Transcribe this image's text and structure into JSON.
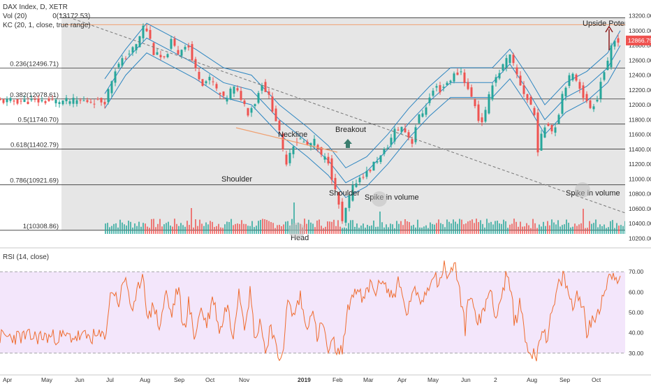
{
  "header": {
    "title": "DAX Index, D, XETR",
    "vol_label": "Vol (20)",
    "vol_value": "0(13172.53)",
    "kc_label": "KC (20, 1, close, true range)"
  },
  "rsi_panel": {
    "label": "RSI (14, close)"
  },
  "colors": {
    "background": "#ffffff",
    "fib_shade": "#e6e6e6",
    "rsi_band": "#f3e6fb",
    "bull": "#26a69a",
    "bear": "#ef5350",
    "channel": "#2e86c1",
    "neckline": "#f0a070",
    "rsi_line": "#ef6c2f",
    "price_tag": "#ef5350",
    "arrow": "#3a7d6e",
    "trendline": "#777777"
  },
  "annotations": {
    "neckline": "Neckline",
    "breakout": "Breakout",
    "shoulder_left": "Shoulder",
    "shoulder_right": "Shoulder",
    "head": "Head",
    "spike1": "Spike in volume",
    "spike2": "Spike in volume",
    "upside": "Upside Potential"
  },
  "chart_data": {
    "type": "candlestick",
    "title": "DAX Index, D, XETR",
    "x_tick_labels": [
      "Apr",
      "May",
      "Jun",
      "Jul",
      "Aug",
      "Sep",
      "Oct",
      "Nov",
      "2019",
      "Feb",
      "Mar",
      "Apr",
      "May",
      "Jun",
      "2",
      "Aug",
      "Sep",
      "Oct"
    ],
    "price_axis": {
      "ylim": [
        10100,
        13300
      ],
      "ticks": [
        10200,
        10400,
        10600,
        10800,
        11000,
        11200,
        11400,
        11600,
        11800,
        12000,
        12200,
        12400,
        12600,
        12800,
        13000,
        13200
      ],
      "tick_labels": [
        "10200.00",
        "10400.00",
        "10600.00",
        "10800.00",
        "11000.00",
        "11200.00",
        "11400.00",
        "11600.00",
        "11800.00",
        "12000.00",
        "12200.00",
        "12400.00",
        "12600.00",
        "12800.00",
        "13000.00",
        "13200.00"
      ]
    },
    "last_price": "12866.79",
    "fibonacci_levels": [
      {
        "ratio": "0",
        "value": 13172.53,
        "label": "0(13172.53)"
      },
      {
        "ratio": "0.236",
        "value": 12496.71,
        "label": "0.236(12496.71)"
      },
      {
        "ratio": "0.382",
        "value": 12078.61,
        "label": "0.382(12078.61)"
      },
      {
        "ratio": "0.5",
        "value": 11740.7,
        "label": "0.5(11740.70)"
      },
      {
        "ratio": "0.618",
        "value": 11402.79,
        "label": "0.618(11402.79)"
      },
      {
        "ratio": "0.786",
        "value": 10921.69,
        "label": "0.786(10921.69)"
      },
      {
        "ratio": "1",
        "value": 10308.86,
        "label": "1(10308.86)"
      }
    ],
    "close_path": [
      [
        0,
        12050
      ],
      [
        15,
        12480
      ],
      [
        30,
        12650
      ],
      [
        45,
        12800
      ],
      [
        55,
        13050
      ],
      [
        62,
        12980
      ],
      [
        70,
        12700
      ],
      [
        85,
        12600
      ],
      [
        95,
        12850
      ],
      [
        105,
        12700
      ],
      [
        118,
        12850
      ],
      [
        128,
        12500
      ],
      [
        140,
        12300
      ],
      [
        152,
        12350
      ],
      [
        160,
        12200
      ],
      [
        172,
        12050
      ],
      [
        183,
        12250
      ],
      [
        195,
        12100
      ],
      [
        205,
        11900
      ],
      [
        216,
        12050
      ],
      [
        225,
        12300
      ],
      [
        235,
        12100
      ],
      [
        245,
        11800
      ],
      [
        253,
        11500
      ],
      [
        258,
        11180
      ],
      [
        268,
        11450
      ],
      [
        278,
        11550
      ],
      [
        290,
        11450
      ],
      [
        300,
        11500
      ],
      [
        310,
        11300
      ],
      [
        320,
        11250
      ],
      [
        328,
        10900
      ],
      [
        335,
        10650
      ],
      [
        340,
        10400
      ],
      [
        348,
        10700
      ],
      [
        358,
        10950
      ],
      [
        368,
        11050
      ],
      [
        378,
        11100
      ],
      [
        388,
        11250
      ],
      [
        395,
        11300
      ],
      [
        405,
        11450
      ],
      [
        415,
        11650
      ],
      [
        425,
        11700
      ],
      [
        433,
        11600
      ],
      [
        440,
        11500
      ],
      [
        447,
        11800
      ],
      [
        455,
        11900
      ],
      [
        463,
        12050
      ],
      [
        473,
        12250
      ],
      [
        480,
        12200
      ],
      [
        490,
        12300
      ],
      [
        500,
        12400
      ],
      [
        510,
        12450
      ],
      [
        520,
        12200
      ],
      [
        530,
        12000
      ],
      [
        537,
        11720
      ],
      [
        545,
        11900
      ],
      [
        555,
        12300
      ],
      [
        565,
        12450
      ],
      [
        575,
        12600
      ],
      [
        580,
        12650
      ],
      [
        590,
        12400
      ],
      [
        598,
        12200
      ],
      [
        606,
        12050
      ],
      [
        614,
        11950
      ],
      [
        620,
        11400
      ],
      [
        626,
        11600
      ],
      [
        633,
        11800
      ],
      [
        640,
        11650
      ],
      [
        647,
        11750
      ],
      [
        655,
        12150
      ],
      [
        663,
        12350
      ],
      [
        672,
        12400
      ],
      [
        680,
        12250
      ],
      [
        688,
        12050
      ],
      [
        696,
        11950
      ],
      [
        705,
        12100
      ],
      [
        712,
        12400
      ],
      [
        720,
        12550
      ],
      [
        727,
        12850
      ],
      [
        735,
        12880
      ],
      [
        738,
        12870
      ]
    ],
    "keltner_channel": {
      "upper": [
        [
          0,
          12350
        ],
        [
          30,
          12750
        ],
        [
          60,
          13100
        ],
        [
          90,
          12950
        ],
        [
          130,
          12750
        ],
        [
          170,
          12500
        ],
        [
          210,
          12400
        ],
        [
          250,
          12000
        ],
        [
          290,
          11700
        ],
        [
          320,
          11450
        ],
        [
          345,
          11150
        ],
        [
          375,
          11300
        ],
        [
          405,
          11600
        ],
        [
          435,
          11950
        ],
        [
          465,
          12250
        ],
        [
          495,
          12500
        ],
        [
          525,
          12500
        ],
        [
          555,
          12500
        ],
        [
          580,
          12750
        ],
        [
          605,
          12400
        ],
        [
          630,
          12000
        ],
        [
          660,
          12300
        ],
        [
          690,
          12450
        ],
        [
          720,
          12700
        ],
        [
          738,
          13000
        ]
      ],
      "middle": [
        [
          0,
          12150
        ],
        [
          30,
          12600
        ],
        [
          60,
          12900
        ],
        [
          90,
          12750
        ],
        [
          130,
          12550
        ],
        [
          170,
          12300
        ],
        [
          210,
          12200
        ],
        [
          250,
          11800
        ],
        [
          290,
          11500
        ],
        [
          320,
          11250
        ],
        [
          345,
          10950
        ],
        [
          375,
          11100
        ],
        [
          405,
          11400
        ],
        [
          435,
          11750
        ],
        [
          465,
          12050
        ],
        [
          495,
          12300
        ],
        [
          525,
          12300
        ],
        [
          555,
          12300
        ],
        [
          580,
          12550
        ],
        [
          605,
          12200
        ],
        [
          630,
          11800
        ],
        [
          660,
          12100
        ],
        [
          690,
          12250
        ],
        [
          720,
          12500
        ],
        [
          738,
          12800
        ]
      ],
      "lower": [
        [
          0,
          11950
        ],
        [
          30,
          12400
        ],
        [
          60,
          12700
        ],
        [
          90,
          12550
        ],
        [
          130,
          12350
        ],
        [
          170,
          12100
        ],
        [
          210,
          12000
        ],
        [
          250,
          11600
        ],
        [
          290,
          11300
        ],
        [
          320,
          11050
        ],
        [
          345,
          10750
        ],
        [
          375,
          10900
        ],
        [
          405,
          11200
        ],
        [
          435,
          11550
        ],
        [
          465,
          11850
        ],
        [
          495,
          12100
        ],
        [
          525,
          12100
        ],
        [
          555,
          12100
        ],
        [
          580,
          12350
        ],
        [
          605,
          12000
        ],
        [
          630,
          11600
        ],
        [
          660,
          11900
        ],
        [
          690,
          12050
        ],
        [
          720,
          12300
        ],
        [
          738,
          12600
        ]
      ]
    },
    "rsi": {
      "label": "RSI (14, close)",
      "ylim": [
        20,
        80
      ],
      "ticks": [
        30,
        40,
        50,
        60,
        70
      ],
      "tick_labels": [
        "30.00",
        "40.00",
        "50.00",
        "60.00",
        "70.00"
      ],
      "overbought": 70,
      "oversold": 30,
      "path": [
        [
          0,
          38
        ],
        [
          10,
          62
        ],
        [
          20,
          55
        ],
        [
          30,
          68
        ],
        [
          40,
          48
        ],
        [
          50,
          65
        ],
        [
          55,
          70
        ],
        [
          62,
          45
        ],
        [
          70,
          55
        ],
        [
          78,
          42
        ],
        [
          88,
          60
        ],
        [
          95,
          48
        ],
        [
          105,
          63
        ],
        [
          113,
          40
        ],
        [
          120,
          55
        ],
        [
          128,
          38
        ],
        [
          138,
          52
        ],
        [
          146,
          44
        ],
        [
          155,
          58
        ],
        [
          165,
          40
        ],
        [
          175,
          55
        ],
        [
          183,
          38
        ],
        [
          192,
          62
        ],
        [
          200,
          45
        ],
        [
          208,
          60
        ],
        [
          216,
          35
        ],
        [
          222,
          48
        ],
        [
          230,
          30
        ],
        [
          238,
          45
        ],
        [
          248,
          26
        ],
        [
          255,
          32
        ],
        [
          262,
          55
        ],
        [
          270,
          48
        ],
        [
          280,
          58
        ],
        [
          288,
          42
        ],
        [
          296,
          52
        ],
        [
          304,
          38
        ],
        [
          312,
          45
        ],
        [
          320,
          30
        ],
        [
          328,
          35
        ],
        [
          336,
          28
        ],
        [
          342,
          36
        ],
        [
          350,
          55
        ],
        [
          360,
          62
        ],
        [
          370,
          55
        ],
        [
          380,
          64
        ],
        [
          390,
          60
        ],
        [
          398,
          68
        ],
        [
          405,
          60
        ],
        [
          413,
          58
        ],
        [
          420,
          65
        ],
        [
          428,
          55
        ],
        [
          434,
          48
        ],
        [
          440,
          62
        ],
        [
          450,
          55
        ],
        [
          460,
          60
        ],
        [
          470,
          70
        ],
        [
          478,
          65
        ],
        [
          486,
          72
        ],
        [
          494,
          68
        ],
        [
          500,
          74
        ],
        [
          505,
          68
        ],
        [
          510,
          55
        ],
        [
          516,
          42
        ],
        [
          522,
          60
        ],
        [
          530,
          50
        ],
        [
          538,
          45
        ],
        [
          545,
          55
        ],
        [
          553,
          62
        ],
        [
          560,
          48
        ],
        [
          568,
          58
        ],
        [
          575,
          68
        ],
        [
          580,
          62
        ],
        [
          587,
          45
        ],
        [
          595,
          55
        ],
        [
          603,
          35
        ],
        [
          610,
          30
        ],
        [
          617,
          28
        ],
        [
          625,
          42
        ],
        [
          633,
          38
        ],
        [
          641,
          50
        ],
        [
          649,
          62
        ],
        [
          657,
          68
        ],
        [
          663,
          60
        ],
        [
          670,
          52
        ],
        [
          677,
          60
        ],
        [
          684,
          55
        ],
        [
          690,
          40
        ],
        [
          698,
          45
        ],
        [
          705,
          50
        ],
        [
          713,
          58
        ],
        [
          720,
          66
        ],
        [
          727,
          70
        ],
        [
          733,
          68
        ],
        [
          738,
          66
        ]
      ]
    },
    "volume_spikes": [
      "Spike in volume",
      "Spike in volume"
    ]
  }
}
